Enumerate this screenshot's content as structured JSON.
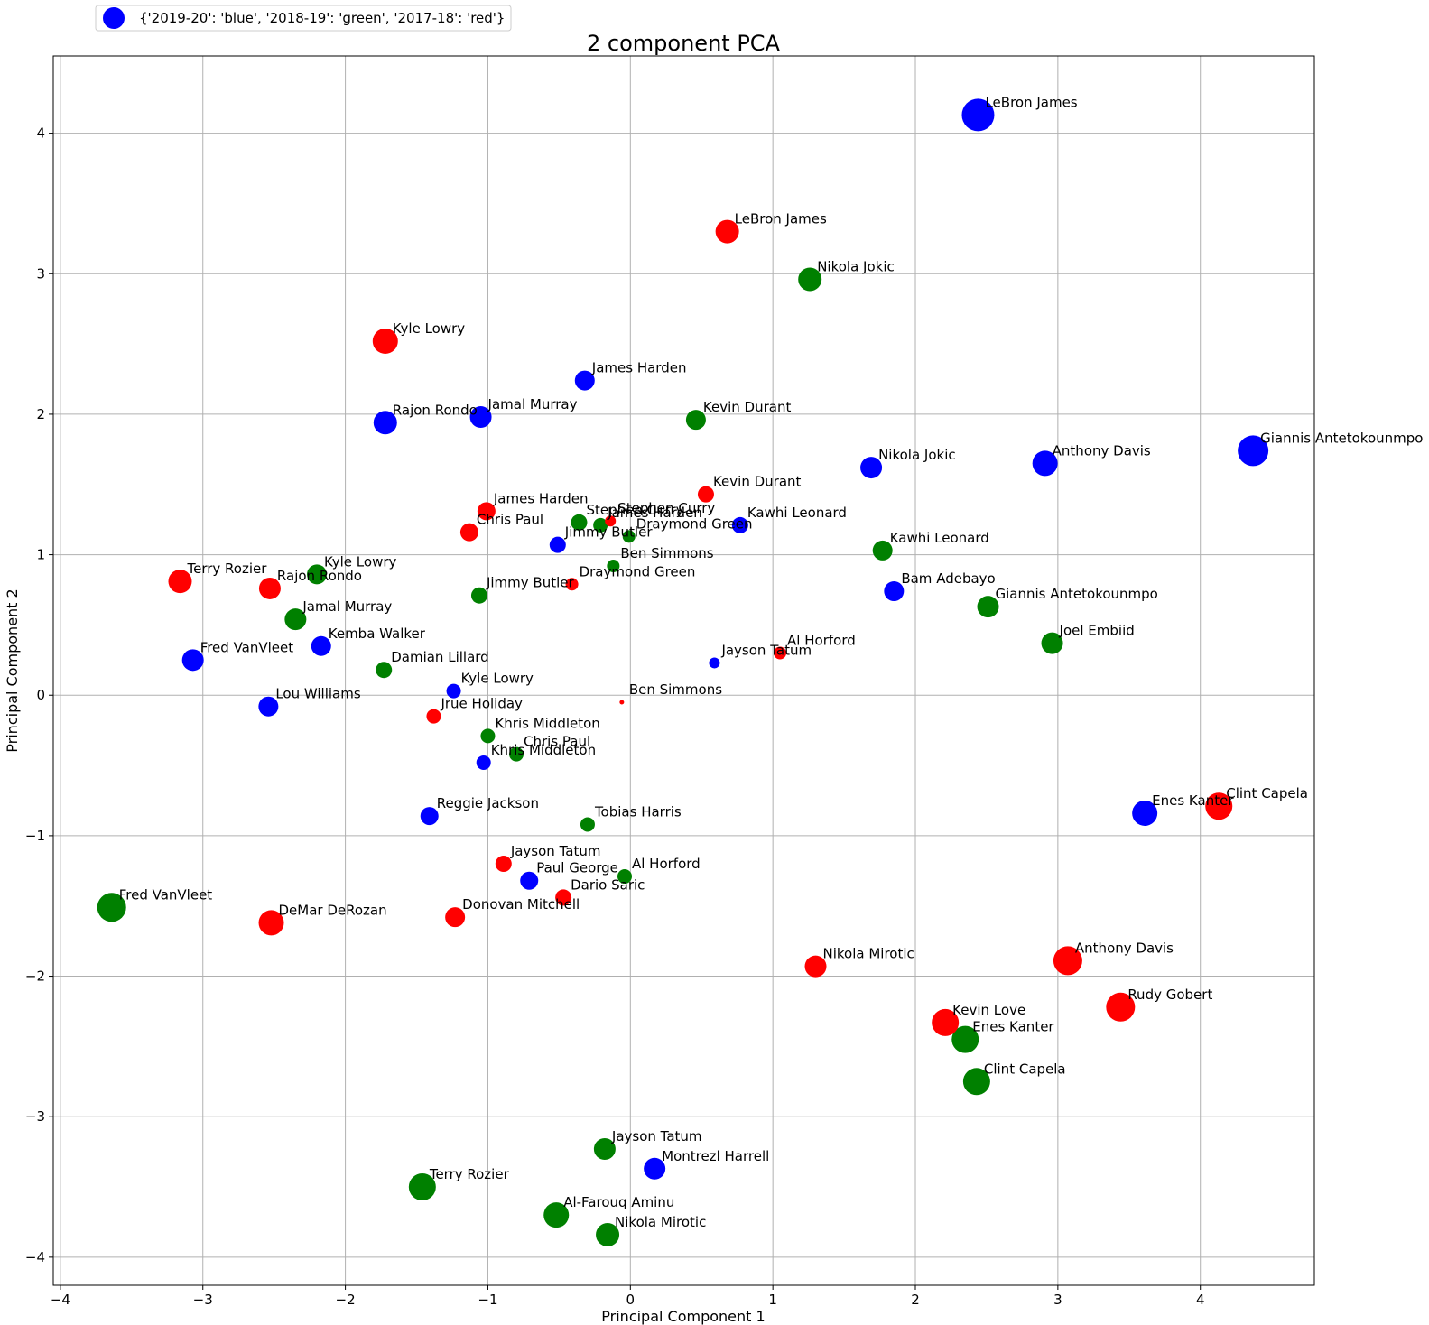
{
  "chart_data": {
    "type": "scatter",
    "title": "2 component PCA",
    "xlabel": "Principal Component 1",
    "ylabel": "Principal Component 2",
    "xlim": [
      -4.05,
      4.8
    ],
    "ylim": [
      -4.2,
      4.55
    ],
    "xticks": [
      -4,
      -3,
      -2,
      -1,
      0,
      1,
      2,
      3,
      4
    ],
    "yticks": [
      -4,
      -3,
      -2,
      -1,
      0,
      1,
      2,
      3,
      4
    ],
    "xtick_labels": [
      "−4",
      "−3",
      "−2",
      "−1",
      "0",
      "1",
      "2",
      "3",
      "4"
    ],
    "ytick_labels": [
      "−4",
      "−3",
      "−2",
      "−1",
      "0",
      "1",
      "2",
      "3",
      "4"
    ],
    "grid": true,
    "legend": {
      "placement": "top-left",
      "label": "{'2019-20': 'blue', '2018-19': 'green', '2017-18': 'red'}",
      "color": "#0000ff"
    },
    "colors": {
      "blue": "#0000ff",
      "green": "#008000",
      "red": "#ff0000"
    },
    "points": [
      {
        "label": "LeBron James",
        "x": 2.44,
        "y": 4.13,
        "size": 18,
        "color": "blue"
      },
      {
        "label": "Giannis Antetokounmpo",
        "x": 4.37,
        "y": 1.74,
        "size": 17,
        "color": "blue"
      },
      {
        "label": "Anthony Davis",
        "x": 2.91,
        "y": 1.65,
        "size": 14,
        "color": "blue"
      },
      {
        "label": "Nikola Jokic",
        "x": 1.69,
        "y": 1.62,
        "size": 12,
        "color": "blue"
      },
      {
        "label": "James Harden",
        "x": -0.32,
        "y": 2.24,
        "size": 11,
        "color": "blue"
      },
      {
        "label": "Jamal Murray",
        "x": -1.05,
        "y": 1.98,
        "size": 12,
        "color": "blue"
      },
      {
        "label": "Rajon Rondo",
        "x": -1.72,
        "y": 1.94,
        "size": 13,
        "color": "blue"
      },
      {
        "label": "Kawhi Leonard",
        "x": 0.77,
        "y": 1.21,
        "size": 9,
        "color": "blue"
      },
      {
        "label": "Jimmy Butler",
        "x": -0.51,
        "y": 1.07,
        "size": 9,
        "color": "blue"
      },
      {
        "label": "Bam Adebayo",
        "x": 1.85,
        "y": 0.74,
        "size": 11,
        "color": "blue"
      },
      {
        "label": "Kemba Walker",
        "x": -2.17,
        "y": 0.35,
        "size": 11,
        "color": "blue"
      },
      {
        "label": "Fred VanVleet",
        "x": -3.07,
        "y": 0.25,
        "size": 12,
        "color": "blue"
      },
      {
        "label": "Jayson Tatum",
        "x": 0.59,
        "y": 0.23,
        "size": 6,
        "color": "blue"
      },
      {
        "label": "Kyle Lowry",
        "x": -1.24,
        "y": 0.03,
        "size": 8,
        "color": "blue"
      },
      {
        "label": "Lou Williams",
        "x": -2.54,
        "y": -0.08,
        "size": 11,
        "color": "blue"
      },
      {
        "label": "Khris Middleton",
        "x": -1.03,
        "y": -0.48,
        "size": 8,
        "color": "blue"
      },
      {
        "label": "Reggie Jackson",
        "x": -1.41,
        "y": -0.86,
        "size": 10,
        "color": "blue"
      },
      {
        "label": "Paul George",
        "x": -0.71,
        "y": -1.32,
        "size": 10,
        "color": "blue"
      },
      {
        "label": "Montrezl Harrell",
        "x": 0.17,
        "y": -3.37,
        "size": 12,
        "color": "blue"
      },
      {
        "label": "Enes Kanter",
        "x": 3.61,
        "y": -0.84,
        "size": 14,
        "color": "blue"
      },
      {
        "label": "Nikola Jokic",
        "x": 1.26,
        "y": 2.96,
        "size": 13,
        "color": "green"
      },
      {
        "label": "Kevin Durant",
        "x": 0.46,
        "y": 1.96,
        "size": 11,
        "color": "green"
      },
      {
        "label": "Stephen Curry",
        "x": -0.36,
        "y": 1.23,
        "size": 9,
        "color": "green"
      },
      {
        "label": "James Harden",
        "x": -0.21,
        "y": 1.21,
        "size": 8,
        "color": "green"
      },
      {
        "label": "Draymond Green",
        "x": -0.01,
        "y": 1.13,
        "size": 7,
        "color": "green"
      },
      {
        "label": "Kawhi Leonard",
        "x": 1.77,
        "y": 1.03,
        "size": 11,
        "color": "green"
      },
      {
        "label": "Ben Simmons",
        "x": -0.12,
        "y": 0.92,
        "size": 7,
        "color": "green"
      },
      {
        "label": "Kyle Lowry",
        "x": -2.2,
        "y": 0.86,
        "size": 11,
        "color": "green"
      },
      {
        "label": "Jimmy Butler",
        "x": -1.06,
        "y": 0.71,
        "size": 9,
        "color": "green"
      },
      {
        "label": "Giannis Antetokounmpo",
        "x": 2.51,
        "y": 0.63,
        "size": 12,
        "color": "green"
      },
      {
        "label": "Jamal Murray",
        "x": -2.35,
        "y": 0.54,
        "size": 12,
        "color": "green"
      },
      {
        "label": "Joel Embiid",
        "x": 2.96,
        "y": 0.37,
        "size": 12,
        "color": "green"
      },
      {
        "label": "Damian Lillard",
        "x": -1.73,
        "y": 0.18,
        "size": 9,
        "color": "green"
      },
      {
        "label": "Khris Middleton",
        "x": -1.0,
        "y": -0.29,
        "size": 8,
        "color": "green"
      },
      {
        "label": "Chris Paul",
        "x": -0.8,
        "y": -0.42,
        "size": 8,
        "color": "green"
      },
      {
        "label": "Tobias Harris",
        "x": -0.3,
        "y": -0.92,
        "size": 8,
        "color": "green"
      },
      {
        "label": "Al Horford",
        "x": -0.04,
        "y": -1.29,
        "size": 8,
        "color": "green"
      },
      {
        "label": "Fred VanVleet",
        "x": -3.64,
        "y": -1.51,
        "size": 16,
        "color": "green"
      },
      {
        "label": "Enes Kanter",
        "x": 2.35,
        "y": -2.45,
        "size": 15,
        "color": "green"
      },
      {
        "label": "Clint Capela",
        "x": 2.43,
        "y": -2.75,
        "size": 15,
        "color": "green"
      },
      {
        "label": "Jayson Tatum",
        "x": -0.18,
        "y": -3.23,
        "size": 12,
        "color": "green"
      },
      {
        "label": "Terry Rozier",
        "x": -1.46,
        "y": -3.5,
        "size": 15,
        "color": "green"
      },
      {
        "label": "Al-Farouq Aminu",
        "x": -0.52,
        "y": -3.7,
        "size": 14,
        "color": "green"
      },
      {
        "label": "Nikola Mirotic",
        "x": -0.16,
        "y": -3.84,
        "size": 13,
        "color": "green"
      },
      {
        "label": "LeBron James",
        "x": 0.68,
        "y": 3.3,
        "size": 13,
        "color": "red"
      },
      {
        "label": "Kyle Lowry",
        "x": -1.72,
        "y": 2.52,
        "size": 14,
        "color": "red"
      },
      {
        "label": "Kevin Durant",
        "x": 0.53,
        "y": 1.43,
        "size": 9,
        "color": "red"
      },
      {
        "label": "James Harden",
        "x": -1.01,
        "y": 1.31,
        "size": 10,
        "color": "red"
      },
      {
        "label": "Stephen Curry",
        "x": -0.14,
        "y": 1.24,
        "size": 6,
        "color": "red"
      },
      {
        "label": "Chris Paul",
        "x": -1.13,
        "y": 1.16,
        "size": 10,
        "color": "red"
      },
      {
        "label": "Terry Rozier",
        "x": -3.16,
        "y": 0.81,
        "size": 13,
        "color": "red"
      },
      {
        "label": "Draymond Green",
        "x": -0.41,
        "y": 0.79,
        "size": 7,
        "color": "red"
      },
      {
        "label": "Rajon Rondo",
        "x": -2.53,
        "y": 0.76,
        "size": 12,
        "color": "red"
      },
      {
        "label": "Al Horford",
        "x": 1.05,
        "y": 0.3,
        "size": 7,
        "color": "red"
      },
      {
        "label": "Ben Simmons",
        "x": -0.06,
        "y": -0.05,
        "size": 2.5,
        "color": "red"
      },
      {
        "label": "Jrue Holiday",
        "x": -1.38,
        "y": -0.15,
        "size": 8,
        "color": "red"
      },
      {
        "label": "Jayson Tatum",
        "x": -0.89,
        "y": -1.2,
        "size": 9,
        "color": "red"
      },
      {
        "label": "Dario Saric",
        "x": -0.47,
        "y": -1.44,
        "size": 9,
        "color": "red"
      },
      {
        "label": "Donovan Mitchell",
        "x": -1.23,
        "y": -1.58,
        "size": 11,
        "color": "red"
      },
      {
        "label": "DeMar DeRozan",
        "x": -2.52,
        "y": -1.62,
        "size": 14,
        "color": "red"
      },
      {
        "label": "Nikola Mirotic",
        "x": 1.3,
        "y": -1.93,
        "size": 12,
        "color": "red"
      },
      {
        "label": "Anthony Davis",
        "x": 3.07,
        "y": -1.89,
        "size": 16,
        "color": "red"
      },
      {
        "label": "Rudy Gobert",
        "x": 3.44,
        "y": -2.22,
        "size": 16,
        "color": "red"
      },
      {
        "label": "Kevin Love",
        "x": 2.21,
        "y": -2.33,
        "size": 15,
        "color": "red"
      },
      {
        "label": "Clint Capela",
        "x": 4.13,
        "y": -0.79,
        "size": 15,
        "color": "red"
      }
    ]
  }
}
